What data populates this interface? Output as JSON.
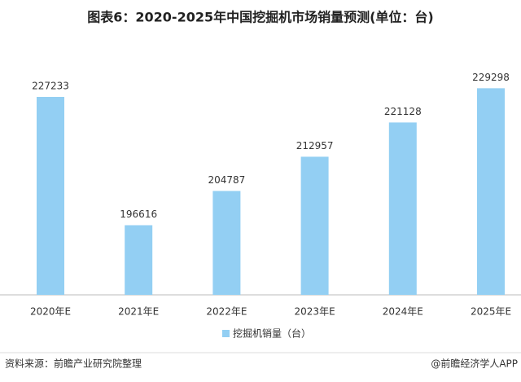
{
  "chart_data": {
    "type": "bar",
    "title": "图表6：2020-2025年中国挖掘机市场销量预测(单位：台)",
    "categories": [
      "2020年E",
      "2021年E",
      "2022年E",
      "2023年E",
      "2024年E",
      "2025年E"
    ],
    "series": [
      {
        "name": "挖掘机销量（台）",
        "color": "#93cff3",
        "values": [
          227233,
          196616,
          204787,
          212957,
          221128,
          229298
        ]
      }
    ],
    "ylim": [
      180000,
      235000
    ],
    "source": "资料来源：前瞻产业研究院整理",
    "credit": "@前瞻经济学人APP"
  }
}
